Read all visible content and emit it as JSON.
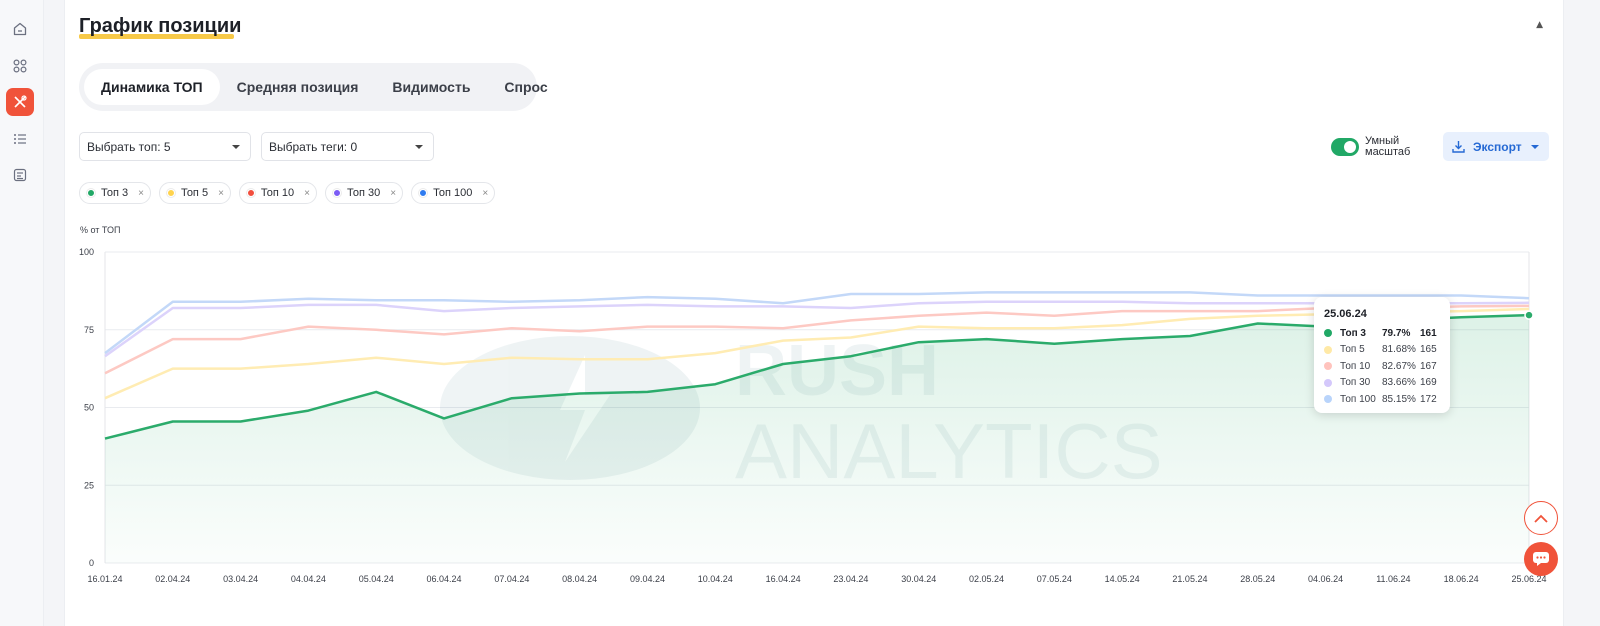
{
  "sidebar": {
    "items": [
      {
        "icon": "home-icon"
      },
      {
        "icon": "grid-icon"
      },
      {
        "icon": "tools-icon",
        "active": true
      },
      {
        "icon": "list-icon"
      },
      {
        "icon": "report-icon"
      }
    ]
  },
  "card": {
    "title": "График позиции",
    "collapse_glyph": "▲"
  },
  "tabs": [
    {
      "label": "Динамика ТОП",
      "active": true
    },
    {
      "label": "Средняя позиция"
    },
    {
      "label": "Видимость"
    },
    {
      "label": "Спрос"
    }
  ],
  "filters": {
    "top_select": "Выбрать топ: 5",
    "tags_select": "Выбрать теги: 0"
  },
  "smart_scale": {
    "label": "Умный масштаб",
    "enabled": true
  },
  "export": {
    "label": "Экспорт"
  },
  "chips": [
    {
      "label": "Топ 3",
      "color": "#21a866"
    },
    {
      "label": "Топ 5",
      "color": "#ffd34d"
    },
    {
      "label": "Топ 10",
      "color": "#f24e3d"
    },
    {
      "label": "Топ 30",
      "color": "#7b5cf5"
    },
    {
      "label": "Топ 100",
      "color": "#2f7bf0"
    }
  ],
  "chip_remove_glyph": "×",
  "watermark": "RUSH ANALYTICS",
  "tooltip": {
    "date": "25.06.24",
    "rows": [
      {
        "name": "Топ 3",
        "pct": "79.7%",
        "count": "161",
        "color": "#21a866",
        "bold": true
      },
      {
        "name": "Топ 5",
        "pct": "81.68%",
        "count": "165",
        "color": "#ffe9a6"
      },
      {
        "name": "Топ 10",
        "pct": "82.67%",
        "count": "167",
        "color": "#ffc3bd"
      },
      {
        "name": "Топ 30",
        "pct": "83.66%",
        "count": "169",
        "color": "#d4c8fb"
      },
      {
        "name": "Топ 100",
        "pct": "85.15%",
        "count": "172",
        "color": "#b9d4fb"
      }
    ]
  },
  "chart_data": {
    "type": "line",
    "ylabel": "% от ТОП",
    "ylim": [
      0,
      100
    ],
    "yticks": [
      0,
      25,
      50,
      75,
      100
    ],
    "x": [
      "16.01.24",
      "02.04.24",
      "03.04.24",
      "04.04.24",
      "05.04.24",
      "06.04.24",
      "07.04.24",
      "08.04.24",
      "09.04.24",
      "10.04.24",
      "16.04.24",
      "23.04.24",
      "30.04.24",
      "02.05.24",
      "07.05.24",
      "14.05.24",
      "21.05.24",
      "28.05.24",
      "04.06.24",
      "11.06.24",
      "18.06.24",
      "25.06.24"
    ],
    "series": [
      {
        "name": "Топ 100",
        "color": "#c3d8f8",
        "width": 2.5,
        "values": [
          67.5,
          84,
          84,
          85,
          84.5,
          84.5,
          84,
          84.5,
          85.5,
          85,
          83.5,
          86.5,
          86.5,
          87,
          87,
          87,
          87,
          86,
          86,
          86,
          86,
          85.15
        ]
      },
      {
        "name": "Топ 30",
        "color": "#dcd3fb",
        "width": 2.5,
        "values": [
          66.5,
          82,
          82,
          83,
          83,
          81,
          82,
          82.5,
          83,
          82.5,
          82.5,
          82,
          83.5,
          84,
          84,
          84,
          83.5,
          83.5,
          83.5,
          83.5,
          83.5,
          83.66
        ]
      },
      {
        "name": "Топ 10",
        "color": "#fdc9c3",
        "width": 2.5,
        "values": [
          61,
          72,
          72,
          76,
          75,
          73.5,
          75.5,
          74.5,
          76,
          76,
          75.5,
          78,
          79.5,
          80.5,
          79.5,
          81,
          81,
          81,
          82,
          82,
          82.5,
          82.67
        ]
      },
      {
        "name": "Топ 5",
        "color": "#ffecb3",
        "width": 2.5,
        "values": [
          53,
          62.5,
          62.5,
          64,
          66,
          64,
          66,
          65.5,
          65.5,
          67.5,
          71.5,
          72.5,
          76,
          75.5,
          75.5,
          76.5,
          78.5,
          79.5,
          80,
          80.5,
          81,
          81.68
        ]
      },
      {
        "name": "Топ 3",
        "color": "#2bab6b",
        "width": 2.5,
        "values": [
          40,
          45.5,
          45.5,
          49,
          55,
          46.5,
          53,
          54.5,
          55,
          57.5,
          64,
          66.5,
          71,
          72,
          70.5,
          72,
          73,
          77,
          76,
          78,
          79,
          79.7
        ],
        "fill": true
      }
    ],
    "grid": true
  }
}
